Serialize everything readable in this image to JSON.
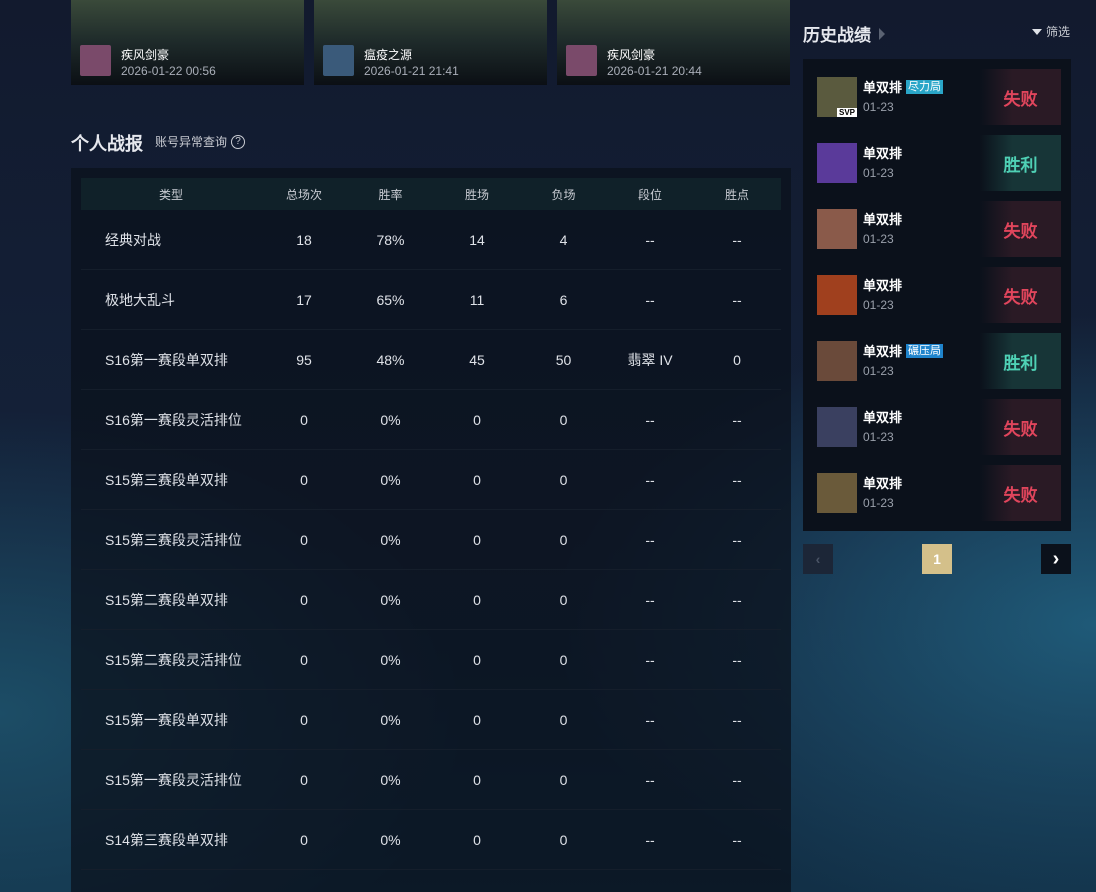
{
  "videos": [
    {
      "hero": "疾风剑豪",
      "time": "2026-01-22 00:56"
    },
    {
      "hero": "瘟疫之源",
      "time": "2026-01-21 21:41"
    },
    {
      "hero": "疾风剑豪",
      "time": "2026-01-21 20:44"
    }
  ],
  "stats": {
    "title": "个人战报",
    "account_link": "账号异常查询",
    "help_icon": "?",
    "columns": [
      "类型",
      "总场次",
      "胜率",
      "胜场",
      "负场",
      "段位",
      "胜点"
    ],
    "rows": [
      [
        "经典对战",
        "18",
        "78%",
        "14",
        "4",
        "--",
        "--"
      ],
      [
        "极地大乱斗",
        "17",
        "65%",
        "11",
        "6",
        "--",
        "--"
      ],
      [
        "S16第一赛段单双排",
        "95",
        "48%",
        "45",
        "50",
        "翡翠 IV",
        "0"
      ],
      [
        "S16第一赛段灵活排位",
        "0",
        "0%",
        "0",
        "0",
        "--",
        "--"
      ],
      [
        "S15第三赛段单双排",
        "0",
        "0%",
        "0",
        "0",
        "--",
        "--"
      ],
      [
        "S15第三赛段灵活排位",
        "0",
        "0%",
        "0",
        "0",
        "--",
        "--"
      ],
      [
        "S15第二赛段单双排",
        "0",
        "0%",
        "0",
        "0",
        "--",
        "--"
      ],
      [
        "S15第二赛段灵活排位",
        "0",
        "0%",
        "0",
        "0",
        "--",
        "--"
      ],
      [
        "S15第一赛段单双排",
        "0",
        "0%",
        "0",
        "0",
        "--",
        "--"
      ],
      [
        "S15第一赛段灵活排位",
        "0",
        "0%",
        "0",
        "0",
        "--",
        "--"
      ],
      [
        "S14第三赛段单双排",
        "0",
        "0%",
        "0",
        "0",
        "--",
        "--"
      ]
    ]
  },
  "history": {
    "title": "历史战绩",
    "filter_label": "筛选",
    "matches": [
      {
        "mode": "单双排",
        "tag": "尽力局",
        "badge": "SVP",
        "date": "01-23",
        "result": "失败",
        "outcome": "lose",
        "avatar_color": "#5a5a3e"
      },
      {
        "mode": "单双排",
        "date": "01-23",
        "result": "胜利",
        "outcome": "win",
        "avatar_color": "#5a3a9a"
      },
      {
        "mode": "单双排",
        "date": "01-23",
        "result": "失败",
        "outcome": "lose",
        "avatar_color": "#8a5a4a"
      },
      {
        "mode": "单双排",
        "date": "01-23",
        "result": "失败",
        "outcome": "lose",
        "avatar_color": "#a0401e"
      },
      {
        "mode": "单双排",
        "tag": "碾压局",
        "date": "01-23",
        "result": "胜利",
        "outcome": "win",
        "avatar_color": "#6a4a3a"
      },
      {
        "mode": "单双排",
        "date": "01-23",
        "result": "失败",
        "outcome": "lose",
        "avatar_color": "#3a4060"
      },
      {
        "mode": "单双排",
        "date": "01-23",
        "result": "失败",
        "outcome": "lose",
        "avatar_color": "#6a5a3a"
      }
    ]
  },
  "pagination": {
    "current": "1",
    "prev_icon": "‹",
    "next_icon": "›"
  },
  "colors": {
    "lose": "#e0455c",
    "win": "#4fd1b5",
    "page_active": "#d4c08a"
  }
}
